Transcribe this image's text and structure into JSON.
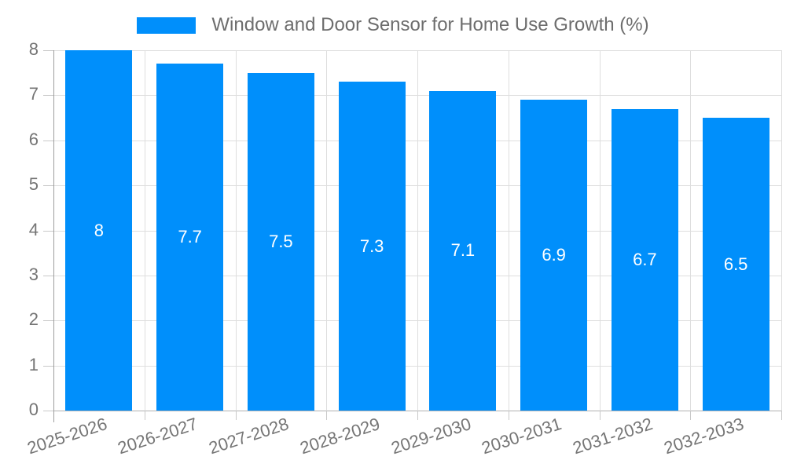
{
  "legend": {
    "label": "Window and Door Sensor for Home Use Growth (%)"
  },
  "chart_data": {
    "type": "bar",
    "title": "Window and Door Sensor for Home Use Growth (%)",
    "categories": [
      "2025-2026",
      "2026-2027",
      "2027-2028",
      "2028-2029",
      "2029-2030",
      "2030-2031",
      "2031-2032",
      "2032-2033"
    ],
    "values": [
      8,
      7.7,
      7.5,
      7.3,
      7.1,
      6.9,
      6.7,
      6.5
    ],
    "bar_labels": [
      "8",
      "7.7",
      "7.5",
      "7.3",
      "7.1",
      "6.9",
      "6.7",
      "6.5"
    ],
    "xlabel": "",
    "ylabel": "",
    "ylim": [
      0,
      8
    ],
    "yticks": [
      0,
      1,
      2,
      3,
      4,
      5,
      6,
      7,
      8
    ],
    "grid": true,
    "legend_position": "top",
    "colors": {
      "bar": "#008FFB",
      "value_label": "#ffffff",
      "axis_label": "#757575",
      "legend_text": "#6d6d6d",
      "gridline": "#dedede",
      "baseline": "#b0b0b0",
      "axis_line": "#9e9e9e"
    }
  }
}
